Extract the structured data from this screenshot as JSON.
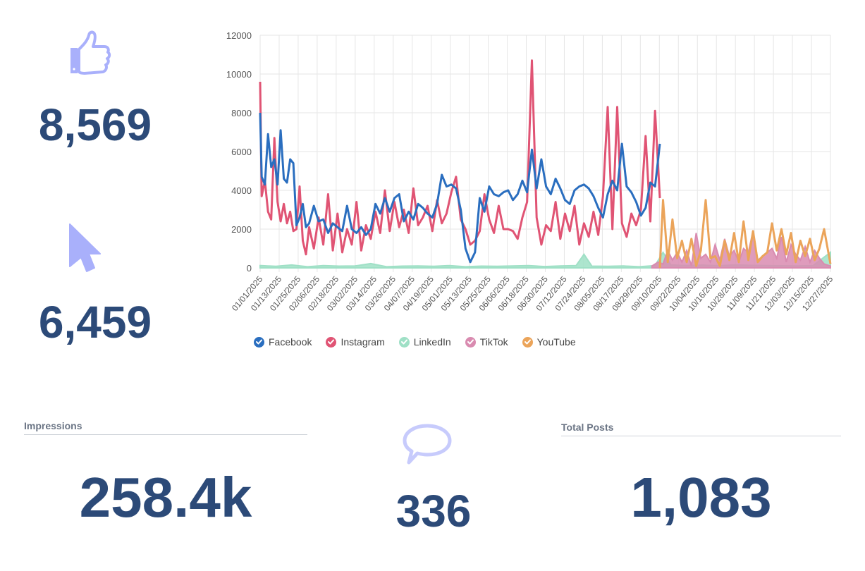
{
  "kpis": {
    "likes": {
      "icon": "thumbs-up-icon",
      "value": "8,569"
    },
    "clicks": {
      "icon": "cursor-icon",
      "value": "6,459"
    },
    "impressions": {
      "title": "Impressions",
      "value": "258.4k"
    },
    "comments": {
      "icon": "speech-bubble-icon",
      "value": "336"
    },
    "total_posts": {
      "title": "Total Posts",
      "value": "1,083"
    }
  },
  "colors": {
    "kpi_text": "#2c4a78",
    "icon": "#a9b0fb",
    "Facebook": "#2a6ebf",
    "Instagram": "#e05474",
    "LinkedIn": "#9fe0c6",
    "TikTok": "#d98bb0",
    "YouTube": "#eba45a"
  },
  "chart_data": {
    "type": "line",
    "title": "",
    "xlabel": "",
    "ylabel": "",
    "ylim": [
      0,
      12000
    ],
    "yticks": [
      "0",
      "2000",
      "4000",
      "6000",
      "8000",
      "10000",
      "12000"
    ],
    "ytick_values": [
      0,
      2000,
      4000,
      6000,
      8000,
      10000,
      12000
    ],
    "grid": true,
    "legend_position": "bottom-left",
    "xtick_labels": [
      "01/01/2025",
      "01/13/2025",
      "01/25/2025",
      "02/06/2025",
      "02/18/2025",
      "03/02/2025",
      "03/14/2025",
      "03/26/2025",
      "04/07/2025",
      "04/19/2025",
      "05/01/2025",
      "05/13/2025",
      "05/25/2025",
      "06/06/2025",
      "06/18/2025",
      "06/30/2025",
      "07/12/2025",
      "07/24/2025",
      "08/05/2025",
      "08/17/2025",
      "08/29/2025",
      "09/10/2025",
      "09/22/2025",
      "10/04/2025",
      "10/16/2025",
      "10/28/2025",
      "11/09/2025",
      "11/21/2025",
      "12/03/2025",
      "12/15/2025",
      "12/27/2025"
    ],
    "x_range_days": [
      0,
      361
    ],
    "series": [
      {
        "name": "Facebook",
        "x_days": [
          0,
          1,
          3,
          5,
          7,
          9,
          11,
          13,
          15,
          17,
          19,
          21,
          23,
          25,
          27,
          29,
          31,
          34,
          37,
          40,
          43,
          46,
          49,
          52,
          55,
          58,
          61,
          64,
          67,
          70,
          73,
          76,
          79,
          82,
          85,
          88,
          91,
          94,
          97,
          100,
          103,
          106,
          109,
          112,
          115,
          118,
          121,
          124,
          127,
          130,
          133,
          136,
          139,
          142,
          145,
          148,
          151,
          154,
          157,
          160,
          163,
          166,
          169,
          172,
          175,
          178,
          181,
          184,
          187,
          190,
          193,
          196,
          199,
          202,
          205,
          208,
          211,
          214,
          217,
          220,
          223,
          226,
          229,
          232,
          235,
          238,
          241,
          244,
          247,
          250,
          253
        ],
        "values": [
          8000,
          4700,
          4300,
          6900,
          5200,
          5600,
          4300,
          7100,
          4600,
          4400,
          5600,
          5400,
          2200,
          2600,
          3300,
          2100,
          2300,
          3200,
          2400,
          2500,
          1800,
          2300,
          2100,
          1900,
          3200,
          2000,
          1800,
          2100,
          1700,
          2000,
          3300,
          2800,
          3600,
          2900,
          3600,
          3800,
          2400,
          2900,
          2500,
          3300,
          3100,
          2800,
          2600,
          3300,
          4800,
          4200,
          4300,
          4100,
          3000,
          1000,
          300,
          800,
          3600,
          2900,
          4200,
          3800,
          3700,
          3900,
          4000,
          3500,
          3800,
          4500,
          3900,
          6100,
          4100,
          5600,
          4200,
          3800,
          4600,
          4100,
          3500,
          3300,
          4000,
          4200,
          4300,
          4100,
          3700,
          3100,
          2600,
          3800,
          4500,
          4000,
          6400,
          4200,
          3900,
          3400,
          2700,
          3100,
          4400,
          4200,
          6400
        ],
        "note": "series ends ~09/10/2025"
      },
      {
        "name": "Instagram",
        "x_days": [
          0,
          1,
          3,
          5,
          7,
          9,
          11,
          13,
          15,
          17,
          19,
          21,
          23,
          25,
          27,
          29,
          31,
          34,
          37,
          40,
          43,
          46,
          49,
          52,
          55,
          58,
          61,
          64,
          67,
          70,
          73,
          76,
          79,
          82,
          85,
          88,
          91,
          94,
          97,
          100,
          103,
          106,
          109,
          112,
          115,
          118,
          121,
          124,
          127,
          130,
          133,
          136,
          139,
          142,
          145,
          148,
          151,
          154,
          157,
          160,
          163,
          166,
          169,
          172,
          175,
          178,
          181,
          184,
          187,
          190,
          193,
          196,
          199,
          202,
          205,
          208,
          211,
          214,
          217,
          220,
          223,
          226,
          229,
          232,
          235,
          238,
          241,
          244,
          247,
          250,
          253
        ],
        "values": [
          9600,
          3700,
          4500,
          2900,
          2500,
          6700,
          3400,
          2400,
          3300,
          2300,
          2900,
          1900,
          2000,
          4200,
          1400,
          700,
          2100,
          1000,
          2600,
          1200,
          3800,
          900,
          2800,
          800,
          2000,
          1200,
          3400,
          900,
          2200,
          1500,
          2900,
          1800,
          4000,
          1900,
          3400,
          2100,
          3000,
          1800,
          4100,
          2200,
          2600,
          3200,
          1900,
          3500,
          2300,
          2800,
          3900,
          4700,
          2500,
          2000,
          1200,
          1400,
          1900,
          3800,
          2500,
          1800,
          3200,
          2000,
          2000,
          1900,
          1500,
          2600,
          3400,
          10700,
          2600,
          1200,
          2200,
          1900,
          3400,
          1500,
          2800,
          1900,
          3200,
          1200,
          2300,
          1600,
          2900,
          1700,
          3700,
          8300,
          2000,
          8300,
          2300,
          1600,
          2800,
          2200,
          3000,
          6800,
          2400,
          8100,
          3600
        ],
        "note": "series ends ~09/10/2025"
      },
      {
        "name": "LinkedIn",
        "x_days": [
          0,
          10,
          20,
          30,
          40,
          50,
          60,
          70,
          80,
          90,
          100,
          110,
          120,
          130,
          140,
          150,
          160,
          170,
          180,
          190,
          200,
          205,
          210,
          220,
          230,
          240,
          250,
          255,
          260,
          270,
          280,
          290,
          300,
          310,
          320,
          330,
          340,
          350,
          361
        ],
        "values": [
          120,
          80,
          150,
          60,
          120,
          90,
          100,
          220,
          60,
          90,
          100,
          80,
          120,
          60,
          90,
          80,
          100,
          120,
          70,
          100,
          120,
          700,
          90,
          80,
          100,
          60,
          120,
          800,
          150,
          120,
          140,
          110,
          150,
          130,
          120,
          110,
          100,
          120,
          800
        ]
      },
      {
        "name": "TikTok",
        "x_days": [
          248,
          252,
          255,
          258,
          261,
          264,
          267,
          270,
          273,
          276,
          279,
          282,
          285,
          288,
          291,
          294,
          297,
          300,
          303,
          306,
          309,
          312,
          315,
          318,
          321,
          324,
          327,
          330,
          333,
          336,
          339,
          342,
          345,
          348,
          351,
          354,
          357,
          361
        ],
        "values": [
          100,
          300,
          200,
          900,
          400,
          800,
          300,
          900,
          100,
          1800,
          500,
          700,
          300,
          1200,
          400,
          1500,
          600,
          900,
          300,
          1000,
          800,
          1900,
          400,
          600,
          800,
          1000,
          500,
          1600,
          300,
          1200,
          700,
          400,
          1100,
          300,
          900,
          500,
          200,
          100
        ]
      },
      {
        "name": "YouTube",
        "x_days": [
          253,
          255,
          258,
          261,
          264,
          267,
          270,
          273,
          276,
          279,
          282,
          285,
          288,
          291,
          294,
          297,
          300,
          303,
          306,
          309,
          312,
          315,
          318,
          321,
          324,
          327,
          330,
          333,
          336,
          339,
          342,
          345,
          348,
          351,
          354,
          357,
          361
        ],
        "values": [
          0,
          3500,
          300,
          2500,
          500,
          1400,
          300,
          1500,
          100,
          900,
          3500,
          500,
          600,
          100,
          1400,
          400,
          1800,
          300,
          2400,
          400,
          1900,
          300,
          600,
          800,
          2300,
          900,
          2000,
          700,
          1800,
          300,
          1400,
          600,
          1500,
          400,
          1000,
          2000,
          200
        ]
      }
    ]
  }
}
